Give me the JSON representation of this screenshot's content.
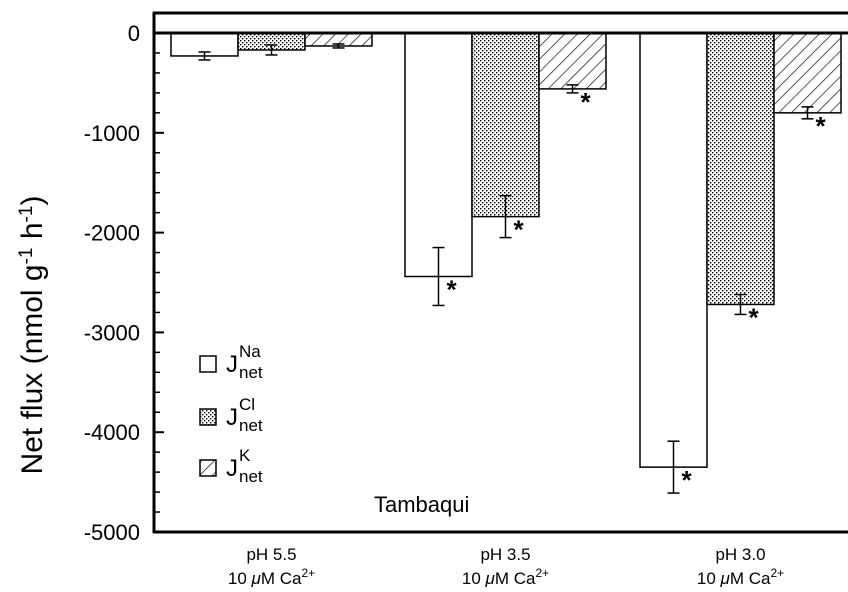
{
  "chart_data": {
    "type": "bar",
    "ylabel": "Net flux (nmol g",
    "ylabel_parts": {
      "base": "Net flux (nmol g",
      "exp1": "-1",
      "mid": " h",
      "exp2": "-1",
      "end": ")"
    },
    "ylim": [
      -5000,
      0
    ],
    "yticks": [
      0,
      -1000,
      -2000,
      -3000,
      -4000,
      -5000
    ],
    "ytick_labels": [
      "0",
      "-1000",
      "-2000",
      "-3000",
      "-4000",
      "-5000"
    ],
    "categories": [
      {
        "line1": "pH 5.5",
        "line2_pre": "10 ",
        "line2_mu": "μ",
        "line2_post": "M Ca",
        "line2_sup": "2+"
      },
      {
        "line1": "pH 3.5",
        "line2_pre": "10 ",
        "line2_mu": "μ",
        "line2_post": "M Ca",
        "line2_sup": "2+"
      },
      {
        "line1": "pH 3.0",
        "line2_pre": "10 ",
        "line2_mu": "μ",
        "line2_post": "M Ca",
        "line2_sup": "2+"
      }
    ],
    "series": [
      {
        "name": "J",
        "sup": "Na",
        "sub": "net",
        "pattern": "white",
        "values": [
          -230,
          -2440,
          -4350
        ],
        "errors": [
          40,
          290,
          260
        ],
        "significant": [
          false,
          true,
          true
        ]
      },
      {
        "name": "J",
        "sup": "Cl",
        "sub": "net",
        "pattern": "dots",
        "values": [
          -170,
          -1840,
          -2720
        ],
        "errors": [
          50,
          210,
          100
        ],
        "significant": [
          false,
          true,
          true
        ]
      },
      {
        "name": "J",
        "sup": "K",
        "sub": "net",
        "pattern": "hatch",
        "values": [
          -130,
          -560,
          -800
        ],
        "errors": [
          20,
          40,
          60
        ],
        "significant": [
          false,
          true,
          true
        ]
      }
    ],
    "significance_marker": "*",
    "annotation": "Tambaqui",
    "legend_position": "bottom-left",
    "grid": false
  },
  "colors": {
    "axis": "#000000",
    "background": "#ffffff"
  }
}
